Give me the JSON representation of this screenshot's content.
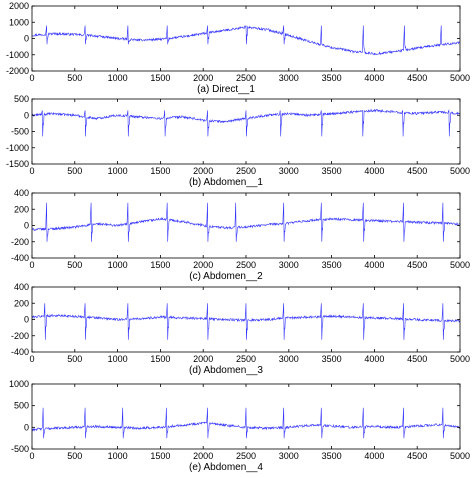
{
  "chart_data": [
    {
      "type": "line",
      "caption": "(a) Direct__1",
      "xlim": [
        0,
        5000
      ],
      "ylim": [
        -2000,
        2000
      ],
      "x_ticks": [
        0,
        500,
        1000,
        1500,
        2000,
        2500,
        3000,
        3500,
        4000,
        4500,
        5000
      ],
      "y_ticks": [
        -2000,
        -1000,
        0,
        1000,
        2000
      ],
      "series": [
        {
          "color": "#3333ff",
          "x": [
            0,
            250,
            500,
            750,
            1000,
            1250,
            1500,
            1750,
            2000,
            2250,
            2500,
            2750,
            3000,
            3250,
            3500,
            3750,
            4000,
            4250,
            4500,
            4750,
            5000
          ],
          "y": [
            200,
            300,
            250,
            150,
            0,
            -100,
            -50,
            100,
            300,
            500,
            700,
            550,
            200,
            -200,
            -550,
            -800,
            -950,
            -800,
            -600,
            -400,
            -250
          ],
          "spike_x": [
            170,
            620,
            1120,
            1580,
            2050,
            2500,
            2940,
            3380,
            3870,
            4350,
            4780
          ],
          "spike_peak": 800,
          "spike_trough": -350
        }
      ]
    },
    {
      "type": "line",
      "caption": "(b) Abdomen__1",
      "xlim": [
        0,
        5000
      ],
      "ylim": [
        -1500,
        500
      ],
      "x_ticks": [
        0,
        500,
        1000,
        1500,
        2000,
        2500,
        3000,
        3500,
        4000,
        4500,
        5000
      ],
      "y_ticks": [
        -1500,
        -1000,
        -500,
        0,
        500
      ],
      "series": [
        {
          "color": "#3333ff",
          "x": [
            0,
            250,
            500,
            750,
            1000,
            1250,
            1500,
            1750,
            2000,
            2250,
            2500,
            2750,
            3000,
            3250,
            3500,
            3750,
            4000,
            4250,
            4500,
            4750,
            5000
          ],
          "y": [
            0,
            50,
            0,
            -100,
            0,
            -50,
            -100,
            -50,
            -150,
            -200,
            -100,
            0,
            50,
            0,
            50,
            100,
            150,
            100,
            50,
            100,
            50
          ],
          "spike_x": [
            120,
            620,
            1120,
            1550,
            2050,
            2500,
            2900,
            3380,
            3860,
            4330,
            4870
          ],
          "spike_peak": 150,
          "spike_trough": -650
        }
      ]
    },
    {
      "type": "line",
      "caption": "(c) Abdomen__2",
      "xlim": [
        0,
        5000
      ],
      "ylim": [
        -400,
        400
      ],
      "x_ticks": [
        0,
        500,
        1000,
        1500,
        2000,
        2500,
        3000,
        3500,
        4000,
        4500,
        5000
      ],
      "y_ticks": [
        -400,
        -200,
        0,
        200,
        400
      ],
      "series": [
        {
          "color": "#3333ff",
          "x": [
            0,
            250,
            500,
            750,
            1000,
            1250,
            1500,
            1750,
            2000,
            2250,
            2500,
            2750,
            3000,
            3250,
            3500,
            3750,
            4000,
            4250,
            4500,
            4750,
            5000
          ],
          "y": [
            -50,
            -40,
            -20,
            20,
            0,
            40,
            80,
            50,
            0,
            -30,
            -20,
            10,
            30,
            60,
            80,
            70,
            60,
            50,
            40,
            30,
            20
          ],
          "spike_x": [
            170,
            690,
            1120,
            1580,
            2050,
            2380,
            2940,
            3380,
            3870,
            4340,
            4800
          ],
          "spike_peak": 280,
          "spike_trough": -200
        }
      ]
    },
    {
      "type": "line",
      "caption": "(d) Abdomen__3",
      "xlim": [
        0,
        5000
      ],
      "ylim": [
        -400,
        400
      ],
      "x_ticks": [
        0,
        500,
        1000,
        1500,
        2000,
        2500,
        3000,
        3500,
        4000,
        4500,
        5000
      ],
      "y_ticks": [
        -400,
        -200,
        0,
        200,
        400
      ],
      "series": [
        {
          "color": "#3333ff",
          "x": [
            0,
            250,
            500,
            750,
            1000,
            1250,
            1500,
            1750,
            2000,
            2250,
            2500,
            2750,
            3000,
            3250,
            3500,
            3750,
            4000,
            4250,
            4500,
            4750,
            5000
          ],
          "y": [
            30,
            50,
            40,
            20,
            0,
            10,
            30,
            20,
            10,
            0,
            -10,
            0,
            20,
            30,
            40,
            30,
            20,
            10,
            0,
            -10,
            -20
          ],
          "spike_x": [
            150,
            620,
            1120,
            1580,
            2050,
            2500,
            2940,
            3380,
            3870,
            4340,
            4800
          ],
          "spike_peak": 200,
          "spike_trough": -250
        }
      ]
    },
    {
      "type": "line",
      "caption": "(e) Abdomen__4",
      "xlim": [
        0,
        5000
      ],
      "ylim": [
        -500,
        1000
      ],
      "x_ticks": [
        0,
        500,
        1000,
        1500,
        2000,
        2500,
        3000,
        3500,
        4000,
        4500,
        5000
      ],
      "y_ticks": [
        -500,
        0,
        500,
        1000
      ],
      "series": [
        {
          "color": "#3333ff",
          "x": [
            0,
            250,
            500,
            750,
            1000,
            1250,
            1500,
            1750,
            2000,
            2250,
            2500,
            2750,
            3000,
            3250,
            3500,
            3750,
            4000,
            4250,
            4500,
            4750,
            5000
          ],
          "y": [
            -50,
            -20,
            0,
            20,
            0,
            -20,
            0,
            50,
            100,
            50,
            0,
            -20,
            0,
            50,
            30,
            0,
            20,
            0,
            30,
            60,
            0
          ],
          "spike_x": [
            130,
            620,
            1060,
            1570,
            2050,
            2500,
            2940,
            3380,
            3870,
            4340,
            4800
          ],
          "spike_peak": 450,
          "spike_trough": -250
        }
      ]
    }
  ]
}
